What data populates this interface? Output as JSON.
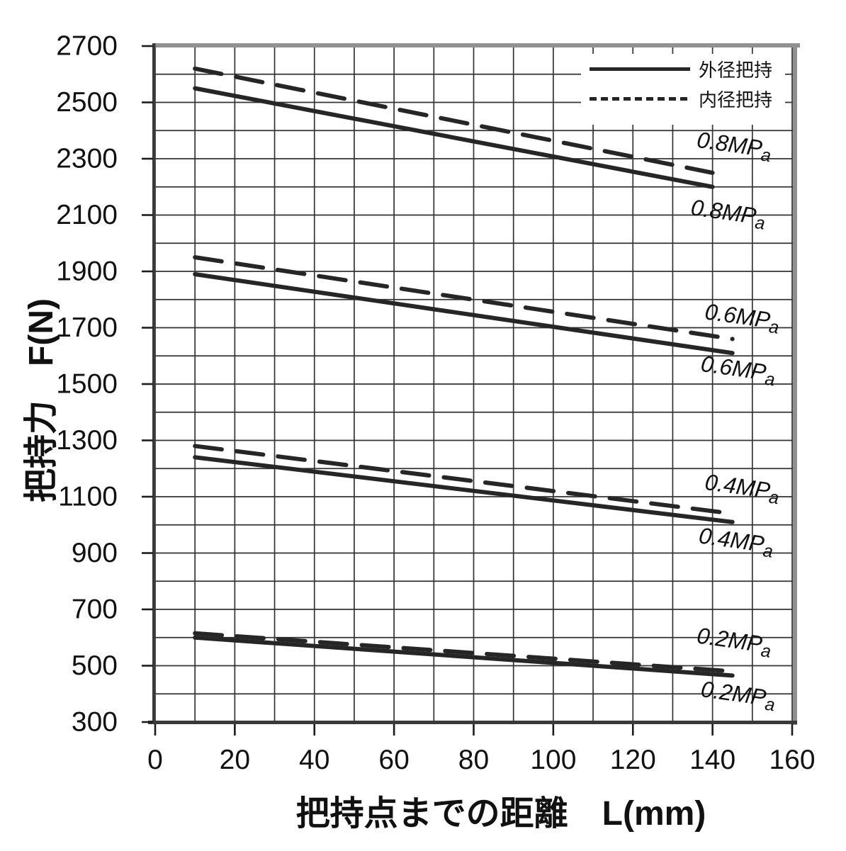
{
  "chart_data": {
    "type": "line",
    "title": "",
    "xlabel": "把持点までの距離　L(mm)",
    "ylabel": "把持力　F(N)",
    "xlim": [
      0,
      160
    ],
    "ylim": [
      300,
      2700
    ],
    "x_grid_step": 10,
    "y_grid_step": 100,
    "x_ticks": [
      0,
      20,
      40,
      60,
      80,
      100,
      120,
      140,
      160
    ],
    "y_ticks": [
      300,
      500,
      700,
      900,
      1100,
      1300,
      1500,
      1700,
      1900,
      2100,
      2300,
      2500,
      2700
    ],
    "grid": true,
    "legend": {
      "position": "top-right",
      "entries": [
        {
          "label": "外径把持",
          "style": "solid"
        },
        {
          "label": "内径把持",
          "style": "dashed"
        }
      ]
    },
    "pressure_levels": [
      "0.2MPa",
      "0.4MPa",
      "0.6MPa",
      "0.8MPa"
    ],
    "series": [
      {
        "name": "外径把持 0.8MPa",
        "grip_type": "外径把持",
        "pressure": "0.8MPa",
        "style": "solid",
        "points": [
          [
            10,
            2550
          ],
          [
            140,
            2200
          ]
        ]
      },
      {
        "name": "内径把持 0.8MPa",
        "grip_type": "内径把持",
        "pressure": "0.8MPa",
        "style": "dashed",
        "points": [
          [
            10,
            2620
          ],
          [
            140,
            2250
          ]
        ]
      },
      {
        "name": "外径把持 0.6MPa",
        "grip_type": "外径把持",
        "pressure": "0.6MPa",
        "style": "solid",
        "points": [
          [
            10,
            1890
          ],
          [
            145,
            1610
          ]
        ]
      },
      {
        "name": "内径把持 0.6MPa",
        "grip_type": "内径把持",
        "pressure": "0.6MPa",
        "style": "dashed",
        "points": [
          [
            10,
            1950
          ],
          [
            145,
            1660
          ]
        ]
      },
      {
        "name": "外径把持 0.4MPa",
        "grip_type": "外径把持",
        "pressure": "0.4MPa",
        "style": "solid",
        "points": [
          [
            10,
            1240
          ],
          [
            145,
            1010
          ]
        ]
      },
      {
        "name": "内径把持 0.4MPa",
        "grip_type": "内径把持",
        "pressure": "0.4MPa",
        "style": "dashed",
        "points": [
          [
            10,
            1280
          ],
          [
            145,
            1040
          ]
        ]
      },
      {
        "name": "外径把持 0.2MPa",
        "grip_type": "外径把持",
        "pressure": "0.2MPa",
        "style": "solid",
        "points": [
          [
            10,
            600
          ],
          [
            145,
            465
          ]
        ]
      },
      {
        "name": "内径把持 0.2MPa",
        "grip_type": "内径把持",
        "pressure": "0.2MPa",
        "style": "dashed",
        "points": [
          [
            10,
            615
          ],
          [
            145,
            480
          ]
        ]
      }
    ],
    "annotations": [
      {
        "text": "0.8MPa",
        "series": "内径把持",
        "x": 145.5,
        "y": 2350
      },
      {
        "text": "0.8MPa",
        "series": "外径把持",
        "x": 144.0,
        "y": 2110
      },
      {
        "text": "0.6MPa",
        "series": "内径把持",
        "x": 147.5,
        "y": 1740
      },
      {
        "text": "0.6MPa",
        "series": "外径把持",
        "x": 146.5,
        "y": 1555
      },
      {
        "text": "0.4MPa",
        "series": "内径把持",
        "x": 147.5,
        "y": 1135
      },
      {
        "text": "0.4MPa",
        "series": "外径把持",
        "x": 146.0,
        "y": 945
      },
      {
        "text": "0.2MPa",
        "series": "内径把持",
        "x": 145.5,
        "y": 590
      },
      {
        "text": "0.2MPa",
        "series": "外径把持",
        "x": 146.5,
        "y": 400
      }
    ],
    "colors": {
      "line": "#262626",
      "grid": "#333333",
      "axis": "#3a3a3a",
      "frame_gray": "#919191",
      "text": "#111111",
      "background": "#ffffff"
    }
  }
}
